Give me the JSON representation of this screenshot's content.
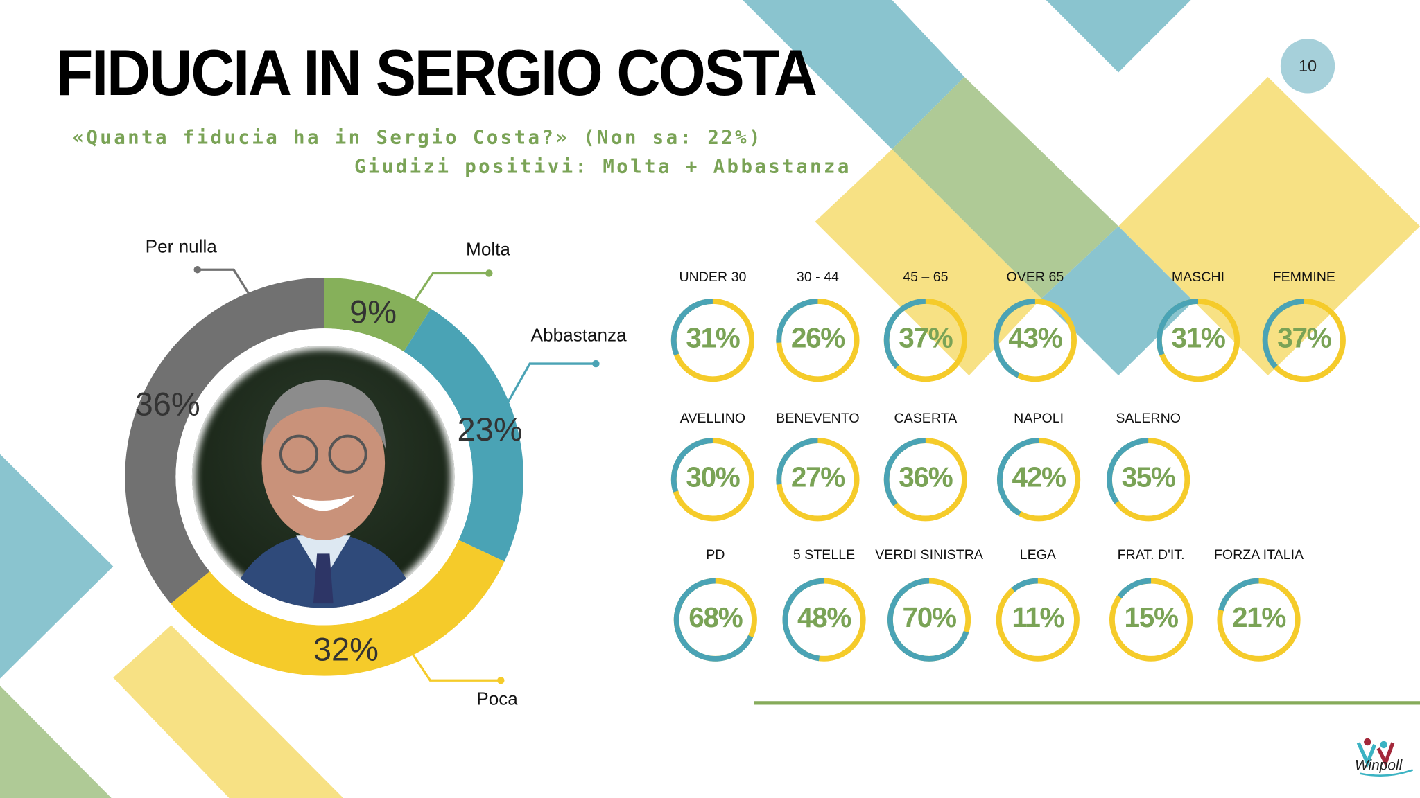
{
  "title": "FIDUCIA IN SERGIO COSTA",
  "page_number": "10",
  "subtitle_line1": "«Quanta fiducia ha in Sergio Costa?» (Non sa: 22%)",
  "subtitle_line2": "Giudizi positivi: Molta + Abbastanza",
  "colors": {
    "green": "#86b05a",
    "teal": "#4aa3b5",
    "yellow": "#f5cb2a",
    "gray": "#717171",
    "value_text": "#7aa356"
  },
  "chart_data": [
    {
      "type": "pie",
      "variant": "donut",
      "title": "Quanta fiducia ha in Sergio Costa?",
      "slices": [
        {
          "name": "Molta",
          "value": 9,
          "label": "9%",
          "color": "#86b05a"
        },
        {
          "name": "Abbastanza",
          "value": 23,
          "label": "23%",
          "color": "#4aa3b5"
        },
        {
          "name": "Poca",
          "value": 32,
          "label": "32%",
          "color": "#f5cb2a"
        },
        {
          "name": "Per nulla",
          "value": 36,
          "label": "36%",
          "color": "#717171"
        }
      ]
    },
    {
      "type": "pie",
      "variant": "ring-gauges",
      "title": "Giudizi positivi: Molta + Abbastanza",
      "groups": [
        {
          "name": "age_gender",
          "items": [
            {
              "label": "UNDER 30",
              "value": 31,
              "text": "31%"
            },
            {
              "label": "30 - 44",
              "value": 26,
              "text": "26%"
            },
            {
              "label": "45 – 65",
              "value": 37,
              "text": "37%"
            },
            {
              "label": "OVER 65",
              "value": 43,
              "text": "43%"
            },
            {
              "label": "MASCHI",
              "value": 31,
              "text": "31%"
            },
            {
              "label": "FEMMINE",
              "value": 37,
              "text": "37%"
            }
          ]
        },
        {
          "name": "province",
          "items": [
            {
              "label": "AVELLINO",
              "value": 30,
              "text": "30%"
            },
            {
              "label": "BENEVENTO",
              "value": 27,
              "text": "27%"
            },
            {
              "label": "CASERTA",
              "value": 36,
              "text": "36%"
            },
            {
              "label": "NAPOLI",
              "value": 42,
              "text": "42%"
            },
            {
              "label": "SALERNO",
              "value": 35,
              "text": "35%"
            }
          ]
        },
        {
          "name": "party",
          "items": [
            {
              "label": "PD",
              "value": 68,
              "text": "68%"
            },
            {
              "label": "5 STELLE",
              "value": 48,
              "text": "48%"
            },
            {
              "label": "VERDI SINISTRA",
              "value": 70,
              "text": "70%"
            },
            {
              "label": "LEGA",
              "value": 11,
              "text": "11%"
            },
            {
              "label": "FRAT. D'IT.",
              "value": 15,
              "text": "15%"
            },
            {
              "label": "FORZA ITALIA",
              "value": 21,
              "text": "21%"
            }
          ]
        }
      ]
    }
  ],
  "logo_text": "Winpoll"
}
